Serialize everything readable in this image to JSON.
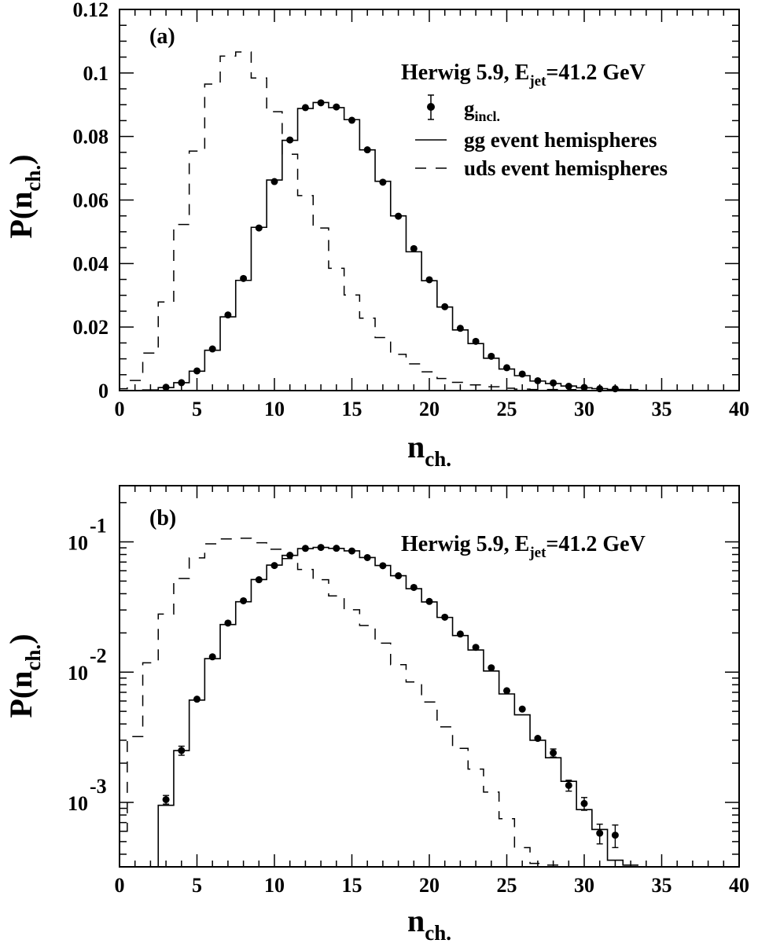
{
  "chart_data": [
    {
      "panel": "(a)",
      "type": "line",
      "scale": "linear",
      "annotation": "Herwig 5.9, E",
      "annotation_sub": "jet",
      "annotation_rest": "=41.2 GeV",
      "xlabel": "n",
      "xlabel_sub": "ch.",
      "ylabel": "P(n",
      "ylabel_sub": "ch.",
      "ylabel_close": ")",
      "xlim": [
        0,
        40
      ],
      "ylim": [
        0,
        0.12
      ],
      "xticks": [
        0,
        5,
        10,
        15,
        20,
        25,
        30,
        35,
        40
      ],
      "yticks": [
        0,
        0.02,
        0.04,
        0.06,
        0.08,
        0.1,
        0.12
      ],
      "ytick_labels": [
        "0",
        "0.02",
        "0.04",
        "0.06",
        "0.08",
        "0.1",
        "0.12"
      ],
      "legend": [
        {
          "style": "points",
          "label": "g",
          "sub": "incl."
        },
        {
          "style": "solid",
          "label": "gg event hemispheres"
        },
        {
          "style": "dashed",
          "label": "uds event hemispheres"
        }
      ]
    },
    {
      "panel": "(b)",
      "type": "line",
      "scale": "log",
      "annotation": "Herwig 5.9, E",
      "annotation_sub": "jet",
      "annotation_rest": "=41.2 GeV",
      "xlabel": "n",
      "xlabel_sub": "ch.",
      "ylabel": "P(n",
      "ylabel_sub": "ch.",
      "ylabel_close": ")",
      "xlim": [
        0,
        40
      ],
      "ylim": [
        0.00032,
        0.27
      ],
      "xticks": [
        0,
        5,
        10,
        15,
        20,
        25,
        30,
        35,
        40
      ],
      "yticks": [
        0.001,
        0.01,
        0.1
      ],
      "ytick_labels": [
        {
          "base": "10",
          "exp": "-3"
        },
        {
          "base": "10",
          "exp": "-2"
        },
        {
          "base": "10",
          "exp": "-1"
        }
      ]
    }
  ],
  "series": {
    "g_incl": {
      "name": "g",
      "name_sub": "incl.",
      "x": [
        3,
        4,
        5,
        6,
        7,
        8,
        9,
        10,
        11,
        12,
        13,
        14,
        15,
        16,
        17,
        18,
        19,
        20,
        21,
        22,
        23,
        24,
        25,
        26,
        27,
        28,
        29,
        30,
        31,
        32
      ],
      "y": [
        0.00105,
        0.0025,
        0.0062,
        0.0131,
        0.0238,
        0.0353,
        0.0512,
        0.0658,
        0.0789,
        0.0891,
        0.0906,
        0.0893,
        0.0851,
        0.0758,
        0.0656,
        0.0549,
        0.0447,
        0.0349,
        0.0264,
        0.0196,
        0.0155,
        0.0108,
        0.0072,
        0.0052,
        0.0031,
        0.0024,
        0.00135,
        0.00098,
        0.00058,
        0.00056
      ],
      "yerr": [
        8e-05,
        0.0002,
        0.0003,
        0.0004,
        0.0005,
        0.0006,
        0.0007,
        0.0008,
        0.0008,
        0.0009,
        0.0009,
        0.0009,
        0.0009,
        0.0008,
        0.0008,
        0.0007,
        0.0006,
        0.0005,
        0.0004,
        0.0004,
        0.0003,
        0.0003,
        0.0002,
        0.0002,
        0.00017,
        0.00017,
        0.00013,
        0.00011,
        0.0001,
        0.00011
      ]
    },
    "gg": {
      "name": "gg event hemispheres",
      "x": [
        2,
        3,
        4,
        5,
        6,
        7,
        8,
        9,
        10,
        11,
        12,
        13,
        14,
        15,
        16,
        17,
        18,
        19,
        20,
        21,
        22,
        23,
        24,
        25,
        26,
        27,
        28,
        29,
        30,
        31,
        32,
        33
      ],
      "y": [
        0.0002,
        0.00095,
        0.0025,
        0.0061,
        0.0127,
        0.0232,
        0.0347,
        0.0514,
        0.0663,
        0.0788,
        0.0888,
        0.0907,
        0.0891,
        0.0853,
        0.0758,
        0.0659,
        0.055,
        0.0437,
        0.0346,
        0.0263,
        0.0191,
        0.0148,
        0.0102,
        0.0068,
        0.0047,
        0.003,
        0.0022,
        0.00145,
        0.00088,
        0.00062,
        0.00036,
        0.00033
      ]
    },
    "uds": {
      "name": "uds event hemispheres",
      "x": [
        0,
        1,
        2,
        3,
        4,
        5,
        6,
        7,
        8,
        9,
        10,
        11,
        12,
        13,
        14,
        15,
        16,
        17,
        18,
        19,
        20,
        21,
        22,
        23,
        24,
        25,
        26,
        27,
        28,
        29
      ],
      "y": [
        0.0006,
        0.0032,
        0.0118,
        0.0279,
        0.0523,
        0.0754,
        0.0965,
        0.1053,
        0.1066,
        0.0984,
        0.0878,
        0.0744,
        0.0614,
        0.0512,
        0.0385,
        0.0301,
        0.0228,
        0.0167,
        0.0114,
        0.0084,
        0.0059,
        0.0038,
        0.0026,
        0.0018,
        0.0012,
        0.00075,
        0.00045,
        0.00034,
        0.00033,
        0.00032
      ]
    }
  }
}
